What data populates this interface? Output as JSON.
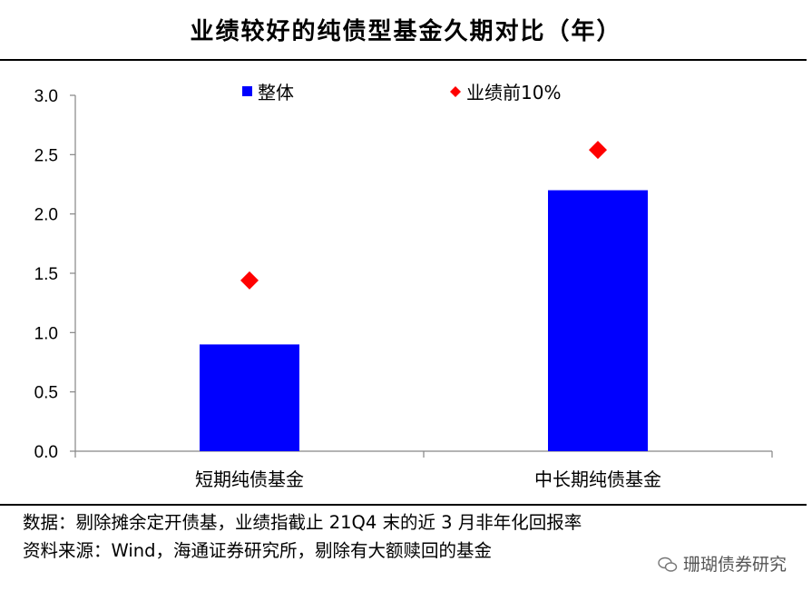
{
  "title": "业绩较好的纯债型基金久期对比（年）",
  "chart_data": {
    "type": "bar",
    "categories": [
      "短期纯债基金",
      "中长期纯债基金"
    ],
    "series": [
      {
        "name": "整体",
        "kind": "bar",
        "values": [
          0.9,
          2.2
        ],
        "color": "#0000FF"
      },
      {
        "name": "业绩前10%",
        "kind": "marker",
        "marker": "diamond",
        "values": [
          1.44,
          2.54
        ],
        "color": "#FF0000"
      }
    ],
    "ylim": [
      0,
      3.0
    ],
    "yticks": [
      "0.0",
      "0.5",
      "1.0",
      "1.5",
      "2.0",
      "2.5",
      "3.0"
    ],
    "grid": false,
    "legend_position": "top"
  },
  "notes": {
    "line1": "数据：剔除摊余定开债基，业绩指截止 21Q4 末的近 3 月非年化回报率",
    "line2": "资料来源：Wind，海通证券研究所，剔除有大额赎回的基金"
  },
  "watermark": "珊瑚债券研究"
}
